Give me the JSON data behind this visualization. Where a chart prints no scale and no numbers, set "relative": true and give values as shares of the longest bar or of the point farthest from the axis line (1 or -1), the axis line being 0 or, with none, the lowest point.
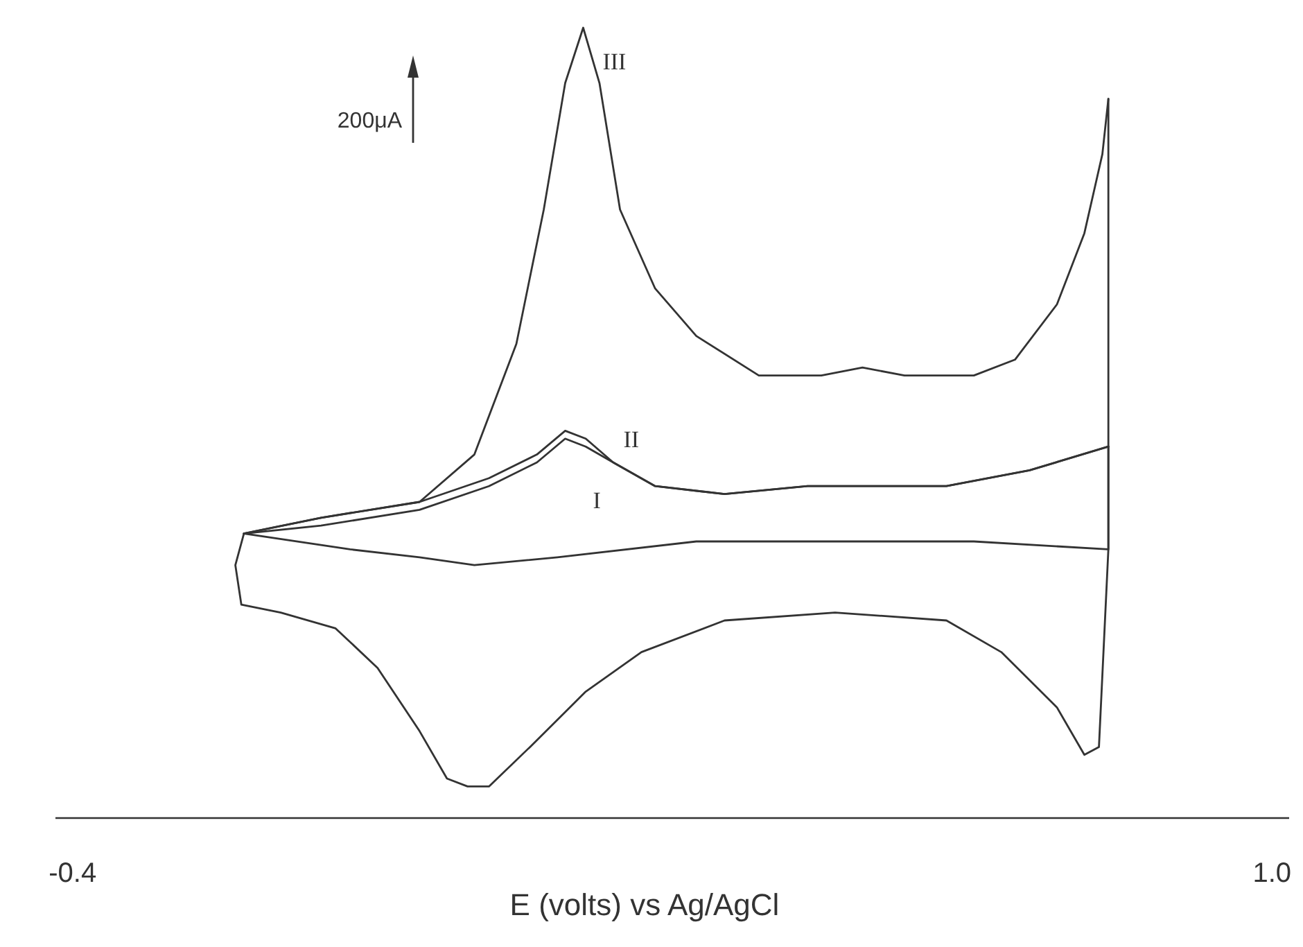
{
  "chart_data": {
    "type": "line",
    "relative": true,
    "xlabel": "E (volts) vs Ag/AgCl",
    "xlim": [
      -0.42,
      1.02
    ],
    "xticks": [
      {
        "value": -0.4,
        "label": "-0.4"
      },
      {
        "value": 1,
        "label": "1.0"
      }
    ],
    "tick_labels": "x",
    "grid": false,
    "legend": false,
    "marker": "none",
    "line_style": "solid",
    "annotations": [
      "200μA"
    ],
    "series": [
      {
        "name": "III",
        "color": "#333333",
        "x": [
          -0.2,
          -0.11,
          0.005,
          0.069,
          0.118,
          0.15,
          0.175,
          0.196,
          0.215,
          0.239,
          0.28,
          0.328,
          0.401,
          0.474,
          0.522,
          0.571,
          0.652,
          0.7,
          0.749,
          0.781,
          0.802,
          0.809
        ],
        "values": [
          0.36,
          0.38,
          0.4,
          0.46,
          0.6,
          0.77,
          0.93,
          1.0,
          0.93,
          0.77,
          0.67,
          0.61,
          0.56,
          0.56,
          0.57,
          0.56,
          0.56,
          0.58,
          0.65,
          0.74,
          0.84,
          0.91
        ]
      },
      {
        "color": "#333333",
        "x": [
          0.809,
          0.809,
          0.798,
          0.781,
          0.749,
          0.684,
          0.62,
          0.49,
          0.361,
          0.264,
          0.199,
          0.134,
          0.086,
          0.061,
          0.037,
          0.005,
          -0.044,
          -0.093,
          -0.157,
          -0.203,
          -0.21,
          -0.2
        ],
        "values": [
          0.91,
          0.34,
          0.09,
          0.08,
          0.14,
          0.21,
          0.25,
          0.26,
          0.25,
          0.21,
          0.16,
          0.09,
          0.04,
          0.04,
          0.05,
          0.11,
          0.19,
          0.24,
          0.26,
          0.27,
          0.32,
          0.36
        ]
      },
      {
        "name": "II",
        "color": "#333333",
        "x": [
          -0.2,
          -0.11,
          0.005,
          0.086,
          0.142,
          0.175,
          0.199,
          0.231,
          0.28,
          0.361,
          0.458,
          0.531,
          0.62,
          0.717,
          0.809
        ],
        "values": [
          0.36,
          0.38,
          0.4,
          0.43,
          0.46,
          0.49,
          0.48,
          0.45,
          0.42,
          0.41,
          0.42,
          0.42,
          0.42,
          0.44,
          0.47
        ]
      },
      {
        "name": "I",
        "color": "#333333",
        "x": [
          -0.2,
          -0.11,
          0.005,
          0.086,
          0.142,
          0.175,
          0.199,
          0.231,
          0.28,
          0.361,
          0.458,
          0.531,
          0.62,
          0.717,
          0.809
        ],
        "values": [
          0.36,
          0.37,
          0.39,
          0.42,
          0.45,
          0.48,
          0.47,
          0.45,
          0.42,
          0.41,
          0.42,
          0.42,
          0.42,
          0.44,
          0.47
        ]
      },
      {
        "color": "#333333",
        "x": [
          0.809,
          0.809,
          0.652,
          0.49,
          0.328,
          0.166,
          0.069,
          0.005,
          -0.076,
          -0.2
        ],
        "values": [
          0.47,
          0.34,
          0.35,
          0.35,
          0.35,
          0.33,
          0.32,
          0.33,
          0.34,
          0.36
        ]
      }
    ]
  }
}
